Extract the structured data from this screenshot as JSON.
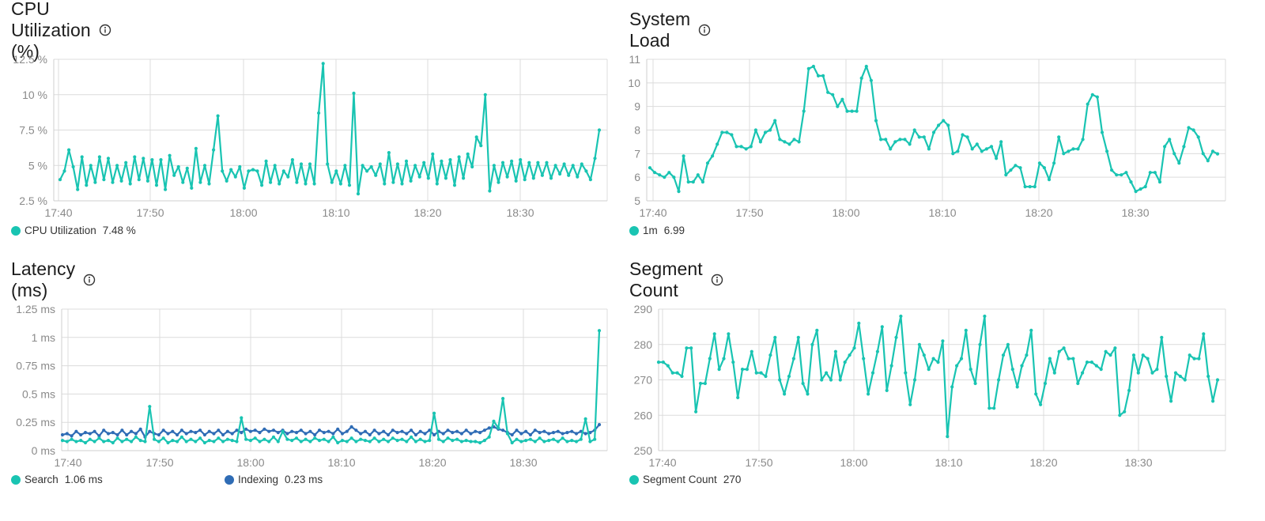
{
  "colors": {
    "teal": "#19c4b2",
    "blue": "#2f6cb5",
    "grid": "#dcdcdc",
    "axis": "#cfcfcf",
    "tick": "#8a8a8a"
  },
  "panels": {
    "cpu": {
      "title": "CPU Utilization (%)",
      "info_icon": "info-icon",
      "legend": [
        {
          "label": "CPU Utilization",
          "value": "7.48 %",
          "color": "#19c4b2"
        }
      ]
    },
    "load": {
      "title": "System Load",
      "info_icon": "info-icon",
      "legend": [
        {
          "label": "1m",
          "value": "6.99",
          "color": "#19c4b2"
        }
      ]
    },
    "latency": {
      "title": "Latency (ms)",
      "info_icon": "info-icon",
      "legend": [
        {
          "label": "Search",
          "value": "1.06 ms",
          "color": "#19c4b2"
        },
        {
          "label": "Indexing",
          "value": "0.23 ms",
          "color": "#2f6cb5"
        }
      ]
    },
    "segments": {
      "title": "Segment Count",
      "info_icon": "info-icon",
      "legend": [
        {
          "label": "Segment Count",
          "value": "270",
          "color": "#19c4b2"
        }
      ]
    }
  },
  "chart_data": [
    {
      "id": "cpu",
      "type": "line",
      "title": "CPU Utilization (%)",
      "x_ticks": [
        "17:40",
        "17:50",
        "18:00",
        "18:10",
        "18:20",
        "18:30"
      ],
      "y_ticks": [
        "2.5 %",
        "5 %",
        "7.5 %",
        "10 %",
        "12.5 %"
      ],
      "ylim": [
        2.5,
        12.5
      ],
      "grid": true,
      "legend_position": "bottom-left",
      "series": [
        {
          "name": "CPU Utilization",
          "color": "#19c4b2",
          "values": [
            4.0,
            4.6,
            6.1,
            4.9,
            3.3,
            5.6,
            3.6,
            5.0,
            3.8,
            5.6,
            4.0,
            5.5,
            3.8,
            5.0,
            3.9,
            5.2,
            3.7,
            5.6,
            4.0,
            5.5,
            3.9,
            5.4,
            3.6,
            5.4,
            3.3,
            5.7,
            4.3,
            4.9,
            3.8,
            4.8,
            3.4,
            6.2,
            3.8,
            5.0,
            3.7,
            6.1,
            8.5,
            4.6,
            3.9,
            4.7,
            4.2,
            4.9,
            3.4,
            4.6,
            4.7,
            4.6,
            3.6,
            5.3,
            3.8,
            5.0,
            3.7,
            4.6,
            4.2,
            5.4,
            3.8,
            5.1,
            3.7,
            5.1,
            3.7,
            8.7,
            12.2,
            5.1,
            3.8,
            4.6,
            3.7,
            5.0,
            3.6,
            10.1,
            3.0,
            5.0,
            4.6,
            4.9,
            4.3,
            5.1,
            3.7,
            5.9,
            3.8,
            5.1,
            3.7,
            5.3,
            3.9,
            5.0,
            4.2,
            5.2,
            4.1,
            5.8,
            3.7,
            5.3,
            4.1,
            5.4,
            3.6,
            5.6,
            4.1,
            5.8,
            4.9,
            7.0,
            6.4,
            10.0,
            3.2,
            5.0,
            3.8,
            5.2,
            4.2,
            5.3,
            3.9,
            5.4,
            4.0,
            5.2,
            4.1,
            5.2,
            4.3,
            5.2,
            4.1,
            5.0,
            4.4,
            5.1,
            4.3,
            5.0,
            4.2,
            5.1,
            4.6,
            4.0,
            5.5,
            7.5
          ]
        }
      ]
    },
    {
      "id": "load",
      "type": "line",
      "title": "System Load",
      "x_ticks": [
        "17:40",
        "17:50",
        "18:00",
        "18:10",
        "18:20",
        "18:30"
      ],
      "y_ticks": [
        "5",
        "6",
        "7",
        "8",
        "9",
        "10",
        "11"
      ],
      "ylim": [
        5,
        11
      ],
      "grid": true,
      "legend_position": "bottom-left",
      "series": [
        {
          "name": "1m",
          "color": "#19c4b2",
          "values": [
            6.4,
            6.2,
            6.1,
            6.0,
            6.2,
            6.0,
            5.4,
            6.9,
            5.8,
            5.8,
            6.1,
            5.8,
            6.6,
            6.9,
            7.4,
            7.9,
            7.9,
            7.8,
            7.3,
            7.3,
            7.2,
            7.3,
            8.0,
            7.5,
            7.9,
            8.0,
            8.4,
            7.6,
            7.5,
            7.4,
            7.6,
            7.5,
            8.8,
            10.6,
            10.7,
            10.3,
            10.3,
            9.6,
            9.5,
            9.0,
            9.3,
            8.8,
            8.8,
            8.8,
            10.2,
            10.7,
            10.1,
            8.4,
            7.6,
            7.6,
            7.2,
            7.5,
            7.6,
            7.6,
            7.4,
            8.0,
            7.7,
            7.7,
            7.2,
            7.9,
            8.2,
            8.4,
            8.2,
            7.0,
            7.1,
            7.8,
            7.7,
            7.2,
            7.4,
            7.1,
            7.2,
            7.3,
            6.8,
            7.5,
            6.1,
            6.3,
            6.5,
            6.4,
            5.6,
            5.6,
            5.6,
            6.6,
            6.4,
            5.9,
            6.6,
            7.7,
            7.0,
            7.1,
            7.2,
            7.2,
            7.6,
            9.1,
            9.5,
            9.4,
            7.9,
            7.1,
            6.3,
            6.1,
            6.1,
            6.2,
            5.8,
            5.4,
            5.5,
            5.6,
            6.2,
            6.2,
            5.8,
            7.3,
            7.6,
            7.0,
            6.6,
            7.3,
            8.1,
            8.0,
            7.7,
            7.0,
            6.7,
            7.1,
            6.99
          ]
        }
      ]
    },
    {
      "id": "latency",
      "type": "line",
      "title": "Latency (ms)",
      "x_ticks": [
        "17:40",
        "17:50",
        "18:00",
        "18:10",
        "18:20",
        "18:30"
      ],
      "y_ticks": [
        "0 ms",
        "0.25 ms",
        "0.5 ms",
        "0.75 ms",
        "1 ms",
        "1.25 ms"
      ],
      "ylim": [
        0,
        1.25
      ],
      "grid": true,
      "legend_position": "bottom-left",
      "series": [
        {
          "name": "Search",
          "color": "#19c4b2",
          "values": [
            0.09,
            0.08,
            0.1,
            0.08,
            0.09,
            0.07,
            0.1,
            0.08,
            0.11,
            0.08,
            0.09,
            0.07,
            0.11,
            0.08,
            0.1,
            0.08,
            0.12,
            0.09,
            0.08,
            0.39,
            0.1,
            0.08,
            0.11,
            0.07,
            0.09,
            0.08,
            0.12,
            0.08,
            0.1,
            0.08,
            0.11,
            0.07,
            0.09,
            0.08,
            0.11,
            0.08,
            0.1,
            0.09,
            0.08,
            0.29,
            0.1,
            0.09,
            0.11,
            0.08,
            0.1,
            0.08,
            0.12,
            0.08,
            0.17,
            0.1,
            0.09,
            0.11,
            0.08,
            0.1,
            0.08,
            0.11,
            0.09,
            0.1,
            0.08,
            0.12,
            0.07,
            0.09,
            0.08,
            0.11,
            0.08,
            0.1,
            0.09,
            0.08,
            0.11,
            0.08,
            0.1,
            0.08,
            0.11,
            0.09,
            0.1,
            0.08,
            0.12,
            0.08,
            0.1,
            0.08,
            0.09,
            0.33,
            0.1,
            0.08,
            0.11,
            0.09,
            0.1,
            0.08,
            0.09,
            0.08,
            0.08,
            0.07,
            0.09,
            0.12,
            0.26,
            0.2,
            0.46,
            0.15,
            0.07,
            0.1,
            0.08,
            0.09,
            0.1,
            0.08,
            0.11,
            0.08,
            0.09,
            0.1,
            0.08,
            0.11,
            0.08,
            0.09,
            0.08,
            0.1,
            0.28,
            0.08,
            0.1,
            1.06
          ]
        },
        {
          "name": "Indexing",
          "color": "#2f6cb5",
          "values": [
            0.14,
            0.15,
            0.13,
            0.17,
            0.14,
            0.16,
            0.15,
            0.17,
            0.13,
            0.18,
            0.15,
            0.16,
            0.14,
            0.18,
            0.14,
            0.17,
            0.15,
            0.19,
            0.12,
            0.17,
            0.15,
            0.14,
            0.18,
            0.15,
            0.17,
            0.14,
            0.18,
            0.15,
            0.17,
            0.16,
            0.18,
            0.14,
            0.17,
            0.15,
            0.18,
            0.14,
            0.17,
            0.15,
            0.18,
            0.16,
            0.19,
            0.17,
            0.18,
            0.16,
            0.19,
            0.17,
            0.18,
            0.16,
            0.18,
            0.15,
            0.17,
            0.16,
            0.18,
            0.15,
            0.17,
            0.14,
            0.18,
            0.16,
            0.17,
            0.15,
            0.19,
            0.15,
            0.17,
            0.21,
            0.18,
            0.15,
            0.17,
            0.14,
            0.18,
            0.15,
            0.17,
            0.14,
            0.18,
            0.16,
            0.17,
            0.15,
            0.18,
            0.14,
            0.17,
            0.15,
            0.18,
            0.14,
            0.17,
            0.15,
            0.18,
            0.16,
            0.17,
            0.15,
            0.18,
            0.15,
            0.17,
            0.16,
            0.18,
            0.2,
            0.21,
            0.19,
            0.18,
            0.16,
            0.14,
            0.18,
            0.15,
            0.17,
            0.14,
            0.18,
            0.16,
            0.17,
            0.15,
            0.16,
            0.17,
            0.15,
            0.16,
            0.17,
            0.15,
            0.17,
            0.15,
            0.16,
            0.18,
            0.23
          ]
        }
      ]
    },
    {
      "id": "segments",
      "type": "line",
      "title": "Segment Count",
      "x_ticks": [
        "17:40",
        "17:50",
        "18:00",
        "18:10",
        "18:20",
        "18:30"
      ],
      "y_ticks": [
        "250",
        "260",
        "270",
        "280",
        "290"
      ],
      "ylim": [
        250,
        290
      ],
      "grid": true,
      "legend_position": "bottom-left",
      "series": [
        {
          "name": "Segment Count",
          "color": "#19c4b2",
          "values": [
            275,
            275,
            274,
            272,
            272,
            271,
            279,
            279,
            261,
            269,
            269,
            276,
            283,
            273,
            276,
            283,
            275,
            265,
            273,
            273,
            278,
            272,
            272,
            271,
            277,
            282,
            270,
            266,
            271,
            276,
            282,
            269,
            266,
            280,
            284,
            270,
            272,
            270,
            278,
            270,
            275,
            277,
            279,
            286,
            276,
            266,
            272,
            278,
            285,
            267,
            274,
            282,
            288,
            272,
            263,
            270,
            280,
            277,
            273,
            276,
            275,
            281,
            254,
            268,
            274,
            276,
            284,
            273,
            269,
            280,
            288,
            262,
            262,
            270,
            277,
            280,
            273,
            268,
            274,
            277,
            284,
            266,
            263,
            269,
            276,
            272,
            278,
            279,
            276,
            276,
            269,
            272,
            275,
            275,
            274,
            273,
            278,
            277,
            279,
            260,
            261,
            267,
            277,
            272,
            277,
            276,
            272,
            273,
            282,
            271,
            264,
            272,
            271,
            270,
            277,
            276,
            276,
            283,
            271,
            264,
            270
          ]
        }
      ]
    }
  ]
}
